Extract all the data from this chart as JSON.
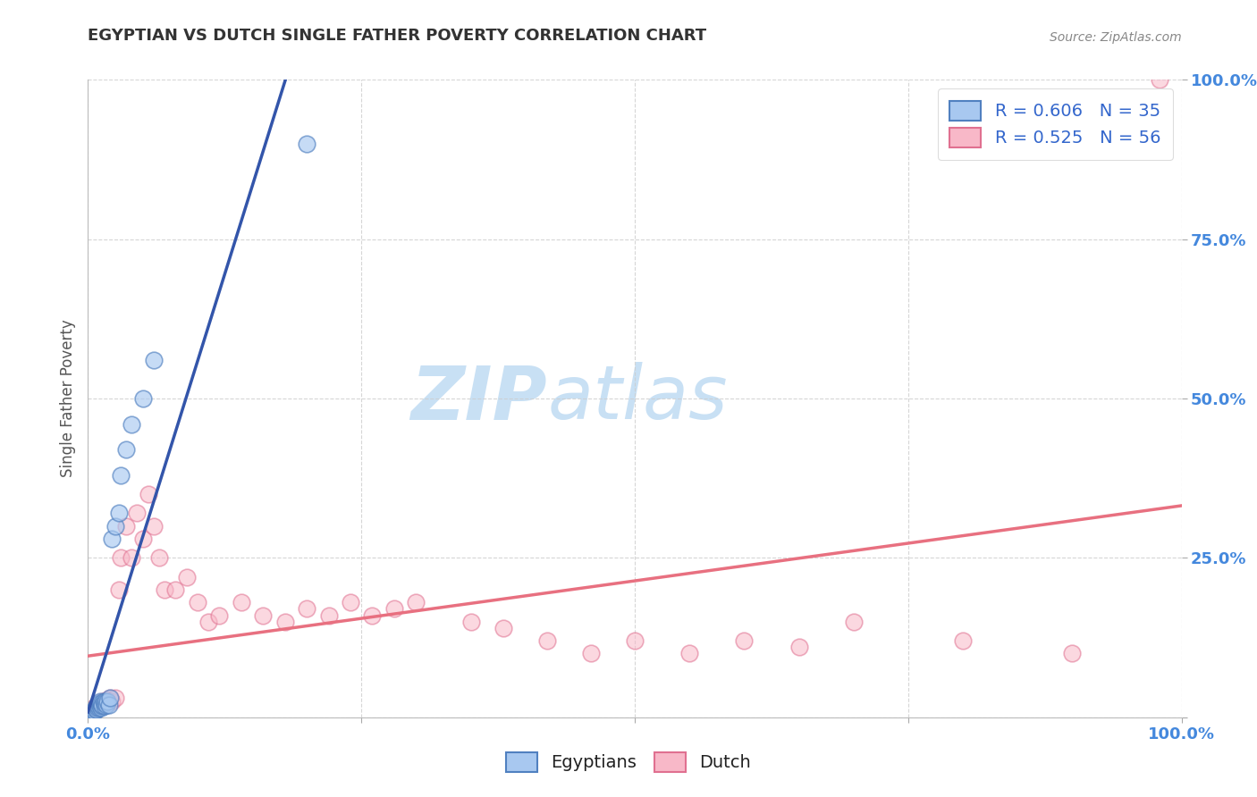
{
  "title": "EGYPTIAN VS DUTCH SINGLE FATHER POVERTY CORRELATION CHART",
  "source": "Source: ZipAtlas.com",
  "ylabel": "Single Father Poverty",
  "xlim": [
    0,
    1
  ],
  "ylim": [
    0,
    1
  ],
  "xticks": [
    0.0,
    0.25,
    0.5,
    0.75,
    1.0
  ],
  "yticks": [
    0.0,
    0.25,
    0.5,
    0.75,
    1.0
  ],
  "yticklabels_right": [
    "",
    "25.0%",
    "50.0%",
    "75.0%",
    "100.0%"
  ],
  "xticklabels_bottom": [
    "0.0%",
    "",
    "",
    "",
    "100.0%"
  ],
  "watermark1": "ZIP",
  "watermark2": "atlas",
  "blue_scatter_face": "#A8C8F0",
  "blue_scatter_edge": "#5080C0",
  "pink_scatter_face": "#F8B8C8",
  "pink_scatter_edge": "#E07090",
  "blue_line_color": "#3355AA",
  "pink_line_color": "#E87080",
  "blue_line_dashed_color": "#99AACC",
  "axis_tick_color": "#4488DD",
  "grid_color": "#CCCCCC",
  "title_color": "#333333",
  "source_color": "#888888",
  "legend_text_color": "#3366CC",
  "ylabel_color": "#555555",
  "watermark_color": "#C8E0F4",
  "leg_r1": "R = 0.606   N = 35",
  "leg_r2": "R = 0.525   N = 56",
  "eg_x": [
    0.003,
    0.004,
    0.005,
    0.006,
    0.007,
    0.007,
    0.008,
    0.008,
    0.009,
    0.009,
    0.01,
    0.01,
    0.011,
    0.011,
    0.012,
    0.012,
    0.013,
    0.013,
    0.014,
    0.015,
    0.015,
    0.016,
    0.017,
    0.018,
    0.019,
    0.02,
    0.022,
    0.025,
    0.028,
    0.03,
    0.035,
    0.04,
    0.05,
    0.06,
    0.2
  ],
  "eg_y": [
    0.005,
    0.008,
    0.01,
    0.01,
    0.012,
    0.015,
    0.012,
    0.018,
    0.015,
    0.02,
    0.015,
    0.022,
    0.018,
    0.025,
    0.015,
    0.022,
    0.018,
    0.02,
    0.025,
    0.018,
    0.022,
    0.025,
    0.02,
    0.025,
    0.02,
    0.03,
    0.28,
    0.3,
    0.32,
    0.38,
    0.42,
    0.46,
    0.5,
    0.56,
    0.9
  ],
  "du_x": [
    0.003,
    0.004,
    0.005,
    0.006,
    0.007,
    0.008,
    0.009,
    0.01,
    0.011,
    0.012,
    0.013,
    0.014,
    0.015,
    0.016,
    0.017,
    0.018,
    0.019,
    0.02,
    0.022,
    0.025,
    0.028,
    0.03,
    0.035,
    0.04,
    0.045,
    0.05,
    0.055,
    0.06,
    0.065,
    0.07,
    0.08,
    0.09,
    0.1,
    0.11,
    0.12,
    0.14,
    0.16,
    0.18,
    0.2,
    0.22,
    0.24,
    0.26,
    0.28,
    0.3,
    0.35,
    0.38,
    0.42,
    0.46,
    0.5,
    0.55,
    0.6,
    0.65,
    0.7,
    0.8,
    0.9,
    0.98
  ],
  "du_y": [
    0.008,
    0.01,
    0.012,
    0.015,
    0.018,
    0.015,
    0.02,
    0.018,
    0.022,
    0.02,
    0.025,
    0.022,
    0.02,
    0.025,
    0.022,
    0.028,
    0.025,
    0.03,
    0.025,
    0.03,
    0.2,
    0.25,
    0.3,
    0.25,
    0.32,
    0.28,
    0.35,
    0.3,
    0.25,
    0.2,
    0.2,
    0.22,
    0.18,
    0.15,
    0.16,
    0.18,
    0.16,
    0.15,
    0.17,
    0.16,
    0.18,
    0.16,
    0.17,
    0.18,
    0.15,
    0.14,
    0.12,
    0.1,
    0.12,
    0.1,
    0.12,
    0.11,
    0.15,
    0.12,
    0.1,
    1.0
  ]
}
